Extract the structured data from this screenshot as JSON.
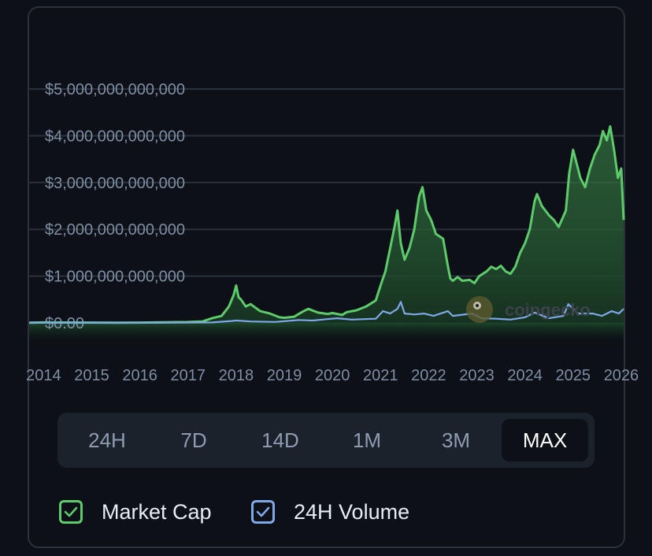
{
  "chart_data": {
    "type": "area",
    "y_tick_labels": [
      "$5,000,000,000,000",
      "$4,000,000,000,000",
      "$3,000,000,000,000",
      "$2,000,000,000,000",
      "$1,000,000,000,000",
      "$0.00"
    ],
    "y_ticks": [
      5000000000000,
      4000000000000,
      3000000000000,
      2000000000000,
      1000000000000,
      0
    ],
    "ylim": [
      0,
      5000000000000
    ],
    "xlim": [
      2013.7,
      2026.05
    ],
    "x_tick_labels": [
      "2014",
      "2015",
      "2016",
      "2017",
      "2018",
      "2019",
      "2020",
      "2021",
      "2022",
      "2023",
      "2024",
      "2025",
      "2026"
    ],
    "x_ticks": [
      2014,
      2015,
      2016,
      2017,
      2018,
      2019,
      2020,
      2021,
      2022,
      2023,
      2024,
      2025,
      2026
    ],
    "grid": true,
    "series": [
      {
        "name": "Market Cap",
        "color": "#5dcb6c",
        "x": [
          2013.7,
          2014.0,
          2014.5,
          2015.0,
          2015.5,
          2016.0,
          2016.5,
          2017.0,
          2017.3,
          2017.5,
          2017.7,
          2017.85,
          2017.95,
          2018.0,
          2018.05,
          2018.1,
          2018.2,
          2018.3,
          2018.5,
          2018.7,
          2018.9,
          2019.0,
          2019.2,
          2019.4,
          2019.5,
          2019.7,
          2019.9,
          2020.0,
          2020.2,
          2020.3,
          2020.5,
          2020.7,
          2020.9,
          2021.0,
          2021.1,
          2021.2,
          2021.3,
          2021.35,
          2021.42,
          2021.5,
          2021.6,
          2021.7,
          2021.8,
          2021.87,
          2021.95,
          2022.05,
          2022.15,
          2022.3,
          2022.4,
          2022.45,
          2022.5,
          2022.6,
          2022.7,
          2022.85,
          2022.95,
          2023.05,
          2023.2,
          2023.3,
          2023.4,
          2023.5,
          2023.6,
          2023.7,
          2023.8,
          2023.9,
          2024.0,
          2024.1,
          2024.2,
          2024.25,
          2024.35,
          2024.5,
          2024.6,
          2024.7,
          2024.85,
          2024.92,
          2025.0,
          2025.05,
          2025.15,
          2025.25,
          2025.35,
          2025.45,
          2025.55,
          2025.62,
          2025.7,
          2025.77,
          2025.85,
          2025.93,
          2026.0,
          2026.05
        ],
        "values": [
          5000000000.0,
          10000000000.0,
          8000000000.0,
          6000000000.0,
          5000000000.0,
          7000000000.0,
          12000000000.0,
          18000000000.0,
          30000000000.0,
          100000000000.0,
          150000000000.0,
          350000000000.0,
          600000000000.0,
          800000000000.0,
          550000000000.0,
          500000000000.0,
          350000000000.0,
          400000000000.0,
          250000000000.0,
          200000000000.0,
          120000000000.0,
          110000000000.0,
          130000000000.0,
          250000000000.0,
          300000000000.0,
          220000000000.0,
          190000000000.0,
          210000000000.0,
          170000000000.0,
          230000000000.0,
          270000000000.0,
          350000000000.0,
          480000000000.0,
          800000000000.0,
          1100000000000.0,
          1600000000000.0,
          2100000000000.0,
          2400000000000.0,
          1700000000000.0,
          1350000000000.0,
          1600000000000.0,
          2000000000000.0,
          2700000000000.0,
          2900000000000.0,
          2400000000000.0,
          2200000000000.0,
          1900000000000.0,
          1800000000000.0,
          1200000000000.0,
          950000000000.0,
          900000000000.0,
          980000000000.0,
          900000000000.0,
          920000000000.0,
          850000000000.0,
          1000000000000.0,
          1100000000000.0,
          1200000000000.0,
          1150000000000.0,
          1220000000000.0,
          1100000000000.0,
          1050000000000.0,
          1200000000000.0,
          1500000000000.0,
          1700000000000.0,
          2000000000000.0,
          2600000000000.0,
          2750000000000.0,
          2500000000000.0,
          2300000000000.0,
          2200000000000.0,
          2050000000000.0,
          2400000000000.0,
          3200000000000.0,
          3700000000000.0,
          3500000000000.0,
          3100000000000.0,
          2900000000000.0,
          3300000000000.0,
          3600000000000.0,
          3800000000000.0,
          4100000000000.0,
          3900000000000.0,
          4200000000000.0,
          3700000000000.0,
          3100000000000.0,
          3300000000000.0,
          2200000000000.0
        ]
      },
      {
        "name": "24H Volume",
        "color": "#7fa8e8",
        "x": [
          2013.7,
          2015.0,
          2016.5,
          2017.5,
          2017.9,
          2018.0,
          2018.3,
          2018.8,
          2019.3,
          2019.6,
          2019.9,
          2020.1,
          2020.4,
          2020.9,
          2021.05,
          2021.2,
          2021.35,
          2021.42,
          2021.5,
          2021.7,
          2021.9,
          2022.1,
          2022.4,
          2022.5,
          2022.9,
          2023.1,
          2023.4,
          2023.7,
          2024.0,
          2024.2,
          2024.5,
          2024.8,
          2024.9,
          2025.0,
          2025.1,
          2025.4,
          2025.6,
          2025.8,
          2025.95,
          2026.05
        ],
        "values": [
          1000000000.0,
          2000000000.0,
          3000000000.0,
          10000000000.0,
          40000000000.0,
          50000000000.0,
          30000000000.0,
          20000000000.0,
          60000000000.0,
          50000000000.0,
          80000000000.0,
          100000000000.0,
          70000000000.0,
          90000000000.0,
          250000000000.0,
          200000000000.0,
          300000000000.0,
          450000000000.0,
          200000000000.0,
          180000000000.0,
          200000000000.0,
          150000000000.0,
          250000000000.0,
          150000000000.0,
          200000000000.0,
          100000000000.0,
          90000000000.0,
          70000000000.0,
          120000000000.0,
          220000000000.0,
          100000000000.0,
          150000000000.0,
          400000000000.0,
          300000000000.0,
          200000000000.0,
          200000000000.0,
          150000000000.0,
          250000000000.0,
          200000000000.0,
          300000000000.0
        ]
      }
    ]
  },
  "watermark": "coingecko",
  "ranges": [
    "24H",
    "7D",
    "14D",
    "1M",
    "3M",
    "MAX"
  ],
  "active_range": "MAX",
  "legend": [
    {
      "label": "Market Cap",
      "color": "#5dcb6c",
      "checked": true
    },
    {
      "label": "24H Volume",
      "color": "#7fa8e8",
      "checked": true
    }
  ]
}
